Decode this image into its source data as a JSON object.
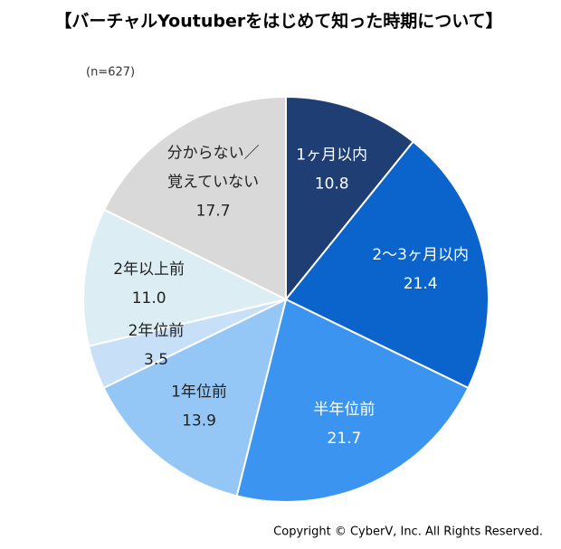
{
  "chart_data": {
    "type": "pie",
    "title": "【バーチャルYoutuberをはじめて知った時期について】",
    "subtitle": "(n=627)",
    "footer": "Copyright © CyberV, Inc. All Rights Reserved.",
    "categories": [
      "1ヶ月以内",
      "2～3ヶ月以内",
      "半年位前",
      "1年位前",
      "2年位前",
      "2年以上前",
      "分からない／\n覚えていない"
    ],
    "values": [
      10.8,
      21.4,
      21.7,
      13.9,
      3.5,
      11.0,
      17.7
    ],
    "value_labels": [
      "10.8",
      "21.4",
      "21.7",
      "13.9",
      "3.5",
      "11.0",
      "17.7"
    ],
    "colors": [
      "#1f3e74",
      "#0b64cb",
      "#3b95f0",
      "#94c6f6",
      "#c7e0f8",
      "#dcedf4",
      "#d9d9d9"
    ]
  }
}
